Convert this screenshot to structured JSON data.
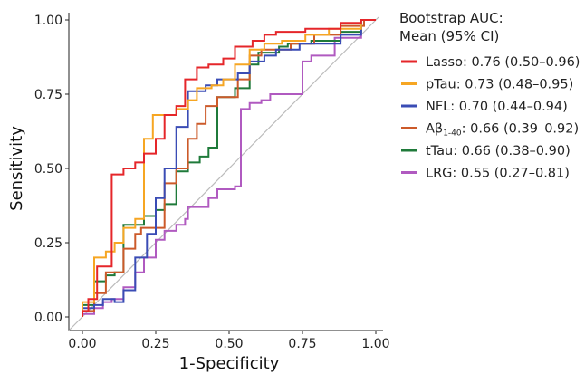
{
  "chart_data": {
    "type": "line",
    "title": "",
    "xlabel": "1-Specificity",
    "ylabel": "Sensitivity",
    "xlim": [
      0,
      1
    ],
    "ylim": [
      0,
      1
    ],
    "x_ticks": [
      "0.00",
      "0.25",
      "0.50",
      "0.75",
      "1.00"
    ],
    "y_ticks": [
      "0.00",
      "0.25",
      "0.50",
      "0.75",
      "1.00"
    ],
    "grid": false,
    "reference_line": {
      "from": [
        0,
        0
      ],
      "to": [
        1,
        1
      ],
      "color": "#bbbbbb"
    },
    "legend": {
      "placement": "right",
      "title_lines": [
        "Bootstrap AUC:",
        "Mean (95% CI)"
      ]
    },
    "series": [
      {
        "name": "Lasso",
        "label_main": "Lasso: 0.76 (0.50–0.96)",
        "color": "#e5262a",
        "points": [
          [
            0,
            0
          ],
          [
            0,
            0.02
          ],
          [
            0.02,
            0.02
          ],
          [
            0.02,
            0.06
          ],
          [
            0.05,
            0.06
          ],
          [
            0.05,
            0.17
          ],
          [
            0.1,
            0.17
          ],
          [
            0.1,
            0.48
          ],
          [
            0.14,
            0.48
          ],
          [
            0.14,
            0.5
          ],
          [
            0.18,
            0.5
          ],
          [
            0.18,
            0.52
          ],
          [
            0.21,
            0.52
          ],
          [
            0.21,
            0.55
          ],
          [
            0.25,
            0.55
          ],
          [
            0.25,
            0.6
          ],
          [
            0.28,
            0.6
          ],
          [
            0.28,
            0.68
          ],
          [
            0.32,
            0.68
          ],
          [
            0.32,
            0.71
          ],
          [
            0.35,
            0.71
          ],
          [
            0.35,
            0.8
          ],
          [
            0.39,
            0.8
          ],
          [
            0.39,
            0.84
          ],
          [
            0.43,
            0.84
          ],
          [
            0.43,
            0.85
          ],
          [
            0.48,
            0.85
          ],
          [
            0.48,
            0.87
          ],
          [
            0.52,
            0.87
          ],
          [
            0.52,
            0.91
          ],
          [
            0.58,
            0.91
          ],
          [
            0.58,
            0.93
          ],
          [
            0.62,
            0.93
          ],
          [
            0.62,
            0.95
          ],
          [
            0.66,
            0.95
          ],
          [
            0.66,
            0.96
          ],
          [
            0.76,
            0.96
          ],
          [
            0.76,
            0.97
          ],
          [
            0.88,
            0.97
          ],
          [
            0.88,
            0.99
          ],
          [
            0.95,
            0.99
          ],
          [
            0.95,
            1
          ],
          [
            1,
            1
          ]
        ]
      },
      {
        "name": "pTau",
        "label_main": "pTau: 0.73 (0.48–0.95)",
        "color": "#f6a623",
        "points": [
          [
            0,
            0
          ],
          [
            0,
            0.05
          ],
          [
            0.04,
            0.05
          ],
          [
            0.04,
            0.2
          ],
          [
            0.08,
            0.2
          ],
          [
            0.08,
            0.22
          ],
          [
            0.11,
            0.22
          ],
          [
            0.11,
            0.25
          ],
          [
            0.14,
            0.25
          ],
          [
            0.14,
            0.3
          ],
          [
            0.18,
            0.3
          ],
          [
            0.18,
            0.33
          ],
          [
            0.21,
            0.33
          ],
          [
            0.21,
            0.6
          ],
          [
            0.24,
            0.6
          ],
          [
            0.24,
            0.68
          ],
          [
            0.32,
            0.68
          ],
          [
            0.32,
            0.7
          ],
          [
            0.36,
            0.7
          ],
          [
            0.36,
            0.73
          ],
          [
            0.39,
            0.73
          ],
          [
            0.39,
            0.77
          ],
          [
            0.44,
            0.77
          ],
          [
            0.44,
            0.78
          ],
          [
            0.48,
            0.78
          ],
          [
            0.48,
            0.8
          ],
          [
            0.52,
            0.8
          ],
          [
            0.52,
            0.85
          ],
          [
            0.57,
            0.85
          ],
          [
            0.57,
            0.9
          ],
          [
            0.62,
            0.9
          ],
          [
            0.62,
            0.92
          ],
          [
            0.68,
            0.92
          ],
          [
            0.68,
            0.93
          ],
          [
            0.76,
            0.93
          ],
          [
            0.76,
            0.95
          ],
          [
            0.84,
            0.95
          ],
          [
            0.84,
            0.97
          ],
          [
            0.95,
            0.97
          ],
          [
            0.95,
            1
          ],
          [
            1,
            1
          ]
        ]
      },
      {
        "name": "NFL",
        "label_main": "NFL: 0.70 (0.44–0.94)",
        "color": "#3a4cb5",
        "points": [
          [
            0,
            0
          ],
          [
            0,
            0.03
          ],
          [
            0.04,
            0.03
          ],
          [
            0.04,
            0.04
          ],
          [
            0.07,
            0.04
          ],
          [
            0.07,
            0.06
          ],
          [
            0.11,
            0.06
          ],
          [
            0.11,
            0.05
          ],
          [
            0.14,
            0.05
          ],
          [
            0.14,
            0.09
          ],
          [
            0.18,
            0.09
          ],
          [
            0.18,
            0.2
          ],
          [
            0.22,
            0.2
          ],
          [
            0.22,
            0.28
          ],
          [
            0.25,
            0.28
          ],
          [
            0.25,
            0.4
          ],
          [
            0.28,
            0.4
          ],
          [
            0.28,
            0.5
          ],
          [
            0.32,
            0.5
          ],
          [
            0.32,
            0.64
          ],
          [
            0.36,
            0.64
          ],
          [
            0.36,
            0.76
          ],
          [
            0.42,
            0.76
          ],
          [
            0.42,
            0.78
          ],
          [
            0.46,
            0.78
          ],
          [
            0.46,
            0.8
          ],
          [
            0.53,
            0.8
          ],
          [
            0.53,
            0.82
          ],
          [
            0.57,
            0.82
          ],
          [
            0.57,
            0.86
          ],
          [
            0.62,
            0.86
          ],
          [
            0.62,
            0.88
          ],
          [
            0.66,
            0.88
          ],
          [
            0.66,
            0.9
          ],
          [
            0.74,
            0.9
          ],
          [
            0.74,
            0.92
          ],
          [
            0.88,
            0.92
          ],
          [
            0.88,
            0.95
          ],
          [
            0.95,
            0.95
          ],
          [
            0.95,
            1
          ],
          [
            1,
            1
          ]
        ]
      },
      {
        "name": "Aβ1-40",
        "label_main": "Aβ",
        "label_sub": "1-40",
        "label_rest": ": 0.66 (0.39–0.92)",
        "color": "#cc5a2a",
        "points": [
          [
            0,
            0
          ],
          [
            0,
            0.02
          ],
          [
            0.04,
            0.02
          ],
          [
            0.04,
            0.08
          ],
          [
            0.08,
            0.08
          ],
          [
            0.08,
            0.15
          ],
          [
            0.14,
            0.15
          ],
          [
            0.14,
            0.23
          ],
          [
            0.18,
            0.23
          ],
          [
            0.18,
            0.28
          ],
          [
            0.2,
            0.28
          ],
          [
            0.2,
            0.3
          ],
          [
            0.28,
            0.3
          ],
          [
            0.28,
            0.45
          ],
          [
            0.32,
            0.45
          ],
          [
            0.32,
            0.5
          ],
          [
            0.36,
            0.5
          ],
          [
            0.36,
            0.6
          ],
          [
            0.39,
            0.6
          ],
          [
            0.39,
            0.65
          ],
          [
            0.42,
            0.65
          ],
          [
            0.42,
            0.71
          ],
          [
            0.46,
            0.71
          ],
          [
            0.46,
            0.74
          ],
          [
            0.53,
            0.74
          ],
          [
            0.53,
            0.8
          ],
          [
            0.57,
            0.8
          ],
          [
            0.57,
            0.88
          ],
          [
            0.61,
            0.88
          ],
          [
            0.61,
            0.9
          ],
          [
            0.71,
            0.9
          ],
          [
            0.71,
            0.92
          ],
          [
            0.79,
            0.92
          ],
          [
            0.79,
            0.95
          ],
          [
            0.88,
            0.95
          ],
          [
            0.88,
            0.98
          ],
          [
            0.96,
            0.98
          ],
          [
            0.96,
            1
          ],
          [
            1,
            1
          ]
        ]
      },
      {
        "name": "tTau",
        "label_main": "tTau: 0.66 (0.38–0.90)",
        "color": "#1f7a3a",
        "points": [
          [
            0,
            0
          ],
          [
            0,
            0.04
          ],
          [
            0.04,
            0.04
          ],
          [
            0.04,
            0.12
          ],
          [
            0.08,
            0.12
          ],
          [
            0.08,
            0.14
          ],
          [
            0.11,
            0.14
          ],
          [
            0.11,
            0.15
          ],
          [
            0.14,
            0.15
          ],
          [
            0.14,
            0.19
          ],
          [
            0.14,
            0.19
          ],
          [
            0.14,
            0.31
          ],
          [
            0.21,
            0.31
          ],
          [
            0.21,
            0.34
          ],
          [
            0.25,
            0.34
          ],
          [
            0.25,
            0.36
          ],
          [
            0.28,
            0.36
          ],
          [
            0.28,
            0.38
          ],
          [
            0.32,
            0.38
          ],
          [
            0.32,
            0.49
          ],
          [
            0.36,
            0.49
          ],
          [
            0.36,
            0.52
          ],
          [
            0.4,
            0.52
          ],
          [
            0.4,
            0.54
          ],
          [
            0.43,
            0.54
          ],
          [
            0.43,
            0.57
          ],
          [
            0.46,
            0.57
          ],
          [
            0.46,
            0.74
          ],
          [
            0.52,
            0.74
          ],
          [
            0.52,
            0.77
          ],
          [
            0.57,
            0.77
          ],
          [
            0.57,
            0.85
          ],
          [
            0.6,
            0.85
          ],
          [
            0.6,
            0.89
          ],
          [
            0.67,
            0.89
          ],
          [
            0.67,
            0.91
          ],
          [
            0.7,
            0.91
          ],
          [
            0.7,
            0.92
          ],
          [
            0.78,
            0.92
          ],
          [
            0.78,
            0.93
          ],
          [
            0.88,
            0.93
          ],
          [
            0.88,
            0.96
          ],
          [
            0.95,
            0.96
          ],
          [
            0.95,
            1
          ],
          [
            1,
            1
          ]
        ]
      },
      {
        "name": "LRG",
        "label_main": "LRG: 0.55 (0.27–0.81)",
        "color": "#b05ac0",
        "points": [
          [
            0,
            0
          ],
          [
            0,
            0.01
          ],
          [
            0.04,
            0.01
          ],
          [
            0.04,
            0.03
          ],
          [
            0.07,
            0.03
          ],
          [
            0.07,
            0.05
          ],
          [
            0.1,
            0.05
          ],
          [
            0.1,
            0.06
          ],
          [
            0.14,
            0.06
          ],
          [
            0.14,
            0.1
          ],
          [
            0.18,
            0.1
          ],
          [
            0.18,
            0.15
          ],
          [
            0.21,
            0.15
          ],
          [
            0.21,
            0.2
          ],
          [
            0.25,
            0.2
          ],
          [
            0.25,
            0.26
          ],
          [
            0.28,
            0.26
          ],
          [
            0.28,
            0.29
          ],
          [
            0.32,
            0.29
          ],
          [
            0.32,
            0.31
          ],
          [
            0.35,
            0.31
          ],
          [
            0.35,
            0.33
          ],
          [
            0.36,
            0.33
          ],
          [
            0.36,
            0.37
          ],
          [
            0.43,
            0.37
          ],
          [
            0.43,
            0.4
          ],
          [
            0.46,
            0.4
          ],
          [
            0.46,
            0.43
          ],
          [
            0.52,
            0.43
          ],
          [
            0.52,
            0.44
          ],
          [
            0.54,
            0.44
          ],
          [
            0.54,
            0.7
          ],
          [
            0.57,
            0.7
          ],
          [
            0.57,
            0.72
          ],
          [
            0.61,
            0.72
          ],
          [
            0.61,
            0.73
          ],
          [
            0.64,
            0.73
          ],
          [
            0.64,
            0.75
          ],
          [
            0.75,
            0.75
          ],
          [
            0.75,
            0.86
          ],
          [
            0.78,
            0.86
          ],
          [
            0.78,
            0.88
          ],
          [
            0.86,
            0.88
          ],
          [
            0.86,
            0.94
          ],
          [
            0.95,
            0.94
          ],
          [
            0.95,
            1
          ],
          [
            1,
            1
          ]
        ]
      }
    ]
  }
}
